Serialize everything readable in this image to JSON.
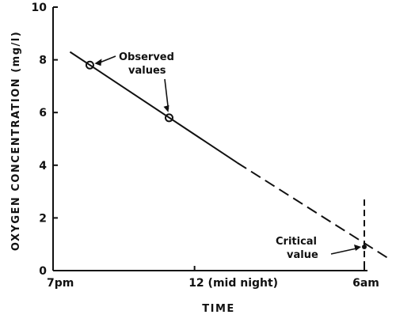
{
  "chart_data": {
    "type": "line",
    "title": "",
    "xlabel": "TIME",
    "ylabel": "OXYGEN CONCENTRATION (mg/l)",
    "x_unit": "hours",
    "xlim": [
      19,
      30
    ],
    "ylim": [
      0,
      10
    ],
    "x_ticks": [
      {
        "x": 19,
        "label": "7pm"
      },
      {
        "x": 24,
        "label": "12 (mid night)"
      },
      {
        "x": 30,
        "label": "6am"
      }
    ],
    "y_ticks": [
      {
        "y": 0,
        "label": "0"
      },
      {
        "y": 2,
        "label": "2"
      },
      {
        "y": 4,
        "label": "4"
      },
      {
        "y": 6,
        "label": "6"
      },
      {
        "y": 8,
        "label": "8"
      },
      {
        "y": 10,
        "label": "10"
      }
    ],
    "grid": false,
    "series": [
      {
        "name": "Observed values",
        "style": "points",
        "points": [
          {
            "x": 20.3,
            "y": 7.8
          },
          {
            "x": 23.1,
            "y": 5.8
          }
        ]
      },
      {
        "style": "solid-line",
        "points": [
          {
            "x": 19.6,
            "y": 8.3
          },
          {
            "x": 25.5,
            "y": 4.1
          }
        ]
      },
      {
        "style": "dashed-line",
        "points": [
          {
            "x": 25.5,
            "y": 4.1
          },
          {
            "x": 30.8,
            "y": 0.5
          }
        ]
      },
      {
        "name": "Critical value",
        "style": "marker",
        "points": [
          {
            "x": 30,
            "y": 0.9
          }
        ]
      }
    ],
    "annotations": [
      {
        "lines": [
          "Observed",
          "values"
        ]
      },
      {
        "lines": [
          "Critical",
          "value"
        ]
      }
    ],
    "vertical_marker": {
      "x": 30,
      "style": "dashed"
    }
  }
}
